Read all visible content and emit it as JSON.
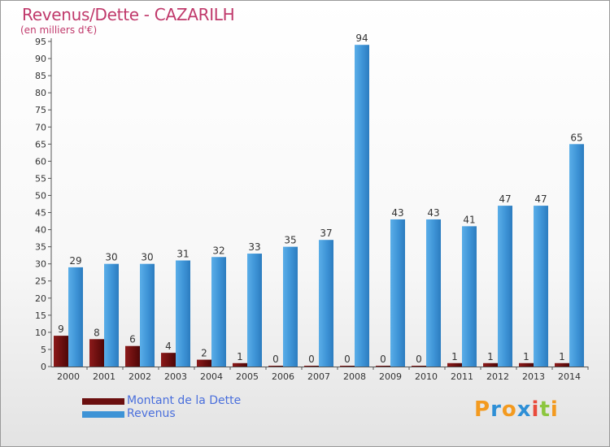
{
  "title": "Revenus/Dette - CAZARILH",
  "subtitle": "(en milliers d'€)",
  "colors": {
    "dette": "#6b0f0f",
    "revenus": "#3d93d6",
    "title": "#c0396b",
    "legend_text": "#4a6fdc"
  },
  "legend": [
    {
      "label": "Montant de la Dette",
      "color": "#6b0f0f"
    },
    {
      "label": "Revenus",
      "color": "#3d93d6"
    }
  ],
  "logo": {
    "letters": [
      "P",
      "r",
      "o",
      "x",
      "i",
      "t",
      "i"
    ],
    "colors": [
      "#f39a1f",
      "#2e8fd6",
      "#f39a1f",
      "#2e8fd6",
      "#e94b3c",
      "#8cc63e",
      "#f39a1f"
    ]
  },
  "chart_data": {
    "type": "bar",
    "title": "Revenus/Dette - CAZARILH",
    "ylabel": "(en milliers d'€)",
    "categories": [
      "2000",
      "2001",
      "2002",
      "2003",
      "2004",
      "2005",
      "2006",
      "2007",
      "2008",
      "2009",
      "2010",
      "2011",
      "2012",
      "2013",
      "2014"
    ],
    "series": [
      {
        "name": "Montant de la Dette",
        "values": [
          9,
          8,
          6,
          4,
          2,
          1,
          0,
          0,
          0,
          0,
          0,
          1,
          1,
          1,
          1
        ]
      },
      {
        "name": "Revenus",
        "values": [
          29,
          30,
          30,
          31,
          32,
          33,
          35,
          37,
          94,
          43,
          43,
          41,
          47,
          47,
          65
        ]
      }
    ],
    "ylim": [
      0,
      95
    ],
    "yticks": [
      0,
      5,
      10,
      15,
      20,
      25,
      30,
      35,
      40,
      45,
      50,
      55,
      60,
      65,
      70,
      75,
      80,
      85,
      90,
      95
    ],
    "grid": false,
    "legend_position": "bottom-left"
  }
}
